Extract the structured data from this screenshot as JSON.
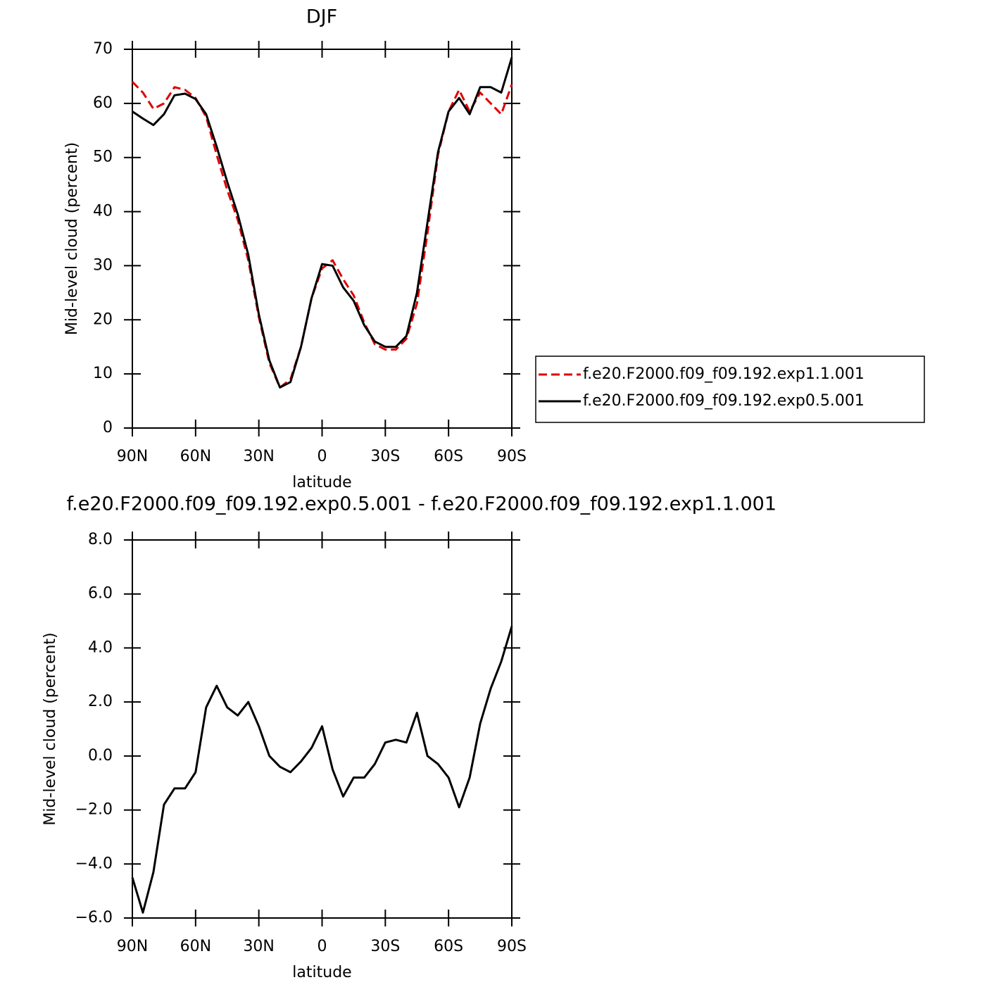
{
  "chart_data": [
    {
      "type": "line",
      "title": "DJF",
      "xlabel": "latitude",
      "ylabel": "Mid-level cloud (percent)",
      "x": [
        90,
        85,
        80,
        75,
        70,
        65,
        60,
        55,
        50,
        45,
        40,
        35,
        30,
        25,
        20,
        15,
        10,
        5,
        0,
        -5,
        -10,
        -15,
        -20,
        -25,
        -30,
        -35,
        -40,
        -45,
        -50,
        -55,
        -60,
        -65,
        -70,
        -75,
        -80,
        -85,
        -90
      ],
      "xlim": [
        90,
        -90
      ],
      "xticks": [
        {
          "value": 90,
          "label": "90N"
        },
        {
          "value": 60,
          "label": "60N"
        },
        {
          "value": 30,
          "label": "30N"
        },
        0,
        {
          "value": -30,
          "label": "30S"
        },
        {
          "value": -60,
          "label": "60S"
        },
        {
          "value": -90,
          "label": "90S"
        }
      ],
      "ylim": [
        0,
        70
      ],
      "yticks": [
        0,
        10,
        20,
        30,
        40,
        50,
        60,
        70
      ],
      "legend": "right",
      "series": [
        {
          "name": "f.e20.F2000.f09_f09.192.exp1.1.001",
          "color": "#e00000",
          "style": "dashed",
          "values": [
            64,
            62,
            59,
            60,
            63,
            62.5,
            61,
            57.5,
            50.5,
            44,
            38.5,
            31,
            20.5,
            12,
            7.5,
            9,
            15,
            24,
            29.5,
            31,
            27.5,
            24.5,
            19.5,
            15.5,
            14.5,
            14.5,
            16.5,
            23,
            36,
            50.5,
            58.5,
            62.5,
            58.5,
            62,
            60,
            58,
            63.5
          ]
        },
        {
          "name": "f.e20.F2000.f09_f09.192.exp0.5.001",
          "color": "#000000",
          "style": "solid",
          "values": [
            58.5,
            57.2,
            56,
            58,
            61.5,
            61.8,
            60.8,
            58,
            52,
            45.5,
            39.5,
            32,
            21,
            12.5,
            7.5,
            8.5,
            15,
            24,
            30.3,
            30,
            26,
            23.5,
            19,
            16,
            15,
            15,
            17,
            25,
            38,
            51,
            58.5,
            61,
            58,
            63,
            63,
            62,
            68.5
          ]
        }
      ]
    },
    {
      "type": "line",
      "title": "f.e20.F2000.f09_f09.192.exp0.5.001 - f.e20.F2000.f09_f09.192.exp1.1.001",
      "xlabel": "latitude",
      "ylabel": "Mid-level cloud (percent)",
      "x": [
        90,
        85,
        80,
        75,
        70,
        65,
        60,
        55,
        50,
        45,
        40,
        35,
        30,
        25,
        20,
        15,
        10,
        5,
        0,
        -5,
        -10,
        -15,
        -20,
        -25,
        -30,
        -35,
        -40,
        -45,
        -50,
        -55,
        -60,
        -65,
        -70,
        -75,
        -80,
        -85,
        -90
      ],
      "xlim": [
        90,
        -90
      ],
      "xticks": [
        {
          "value": 90,
          "label": "90N"
        },
        {
          "value": 60,
          "label": "60N"
        },
        {
          "value": 30,
          "label": "30N"
        },
        0,
        {
          "value": -30,
          "label": "30S"
        },
        {
          "value": -60,
          "label": "60S"
        },
        {
          "value": -90,
          "label": "90S"
        }
      ],
      "ylim": [
        -6,
        8
      ],
      "yticks": [
        {
          "value": -6,
          "label": "−6.0"
        },
        {
          "value": -4,
          "label": "−4.0"
        },
        {
          "value": -2,
          "label": "−2.0"
        },
        {
          "value": 0,
          "label": "0.0"
        },
        {
          "value": 2,
          "label": "2.0"
        },
        {
          "value": 4,
          "label": "4.0"
        },
        {
          "value": 6,
          "label": "6.0"
        },
        {
          "value": 8,
          "label": "8.0"
        }
      ],
      "color": "#000000",
      "values": [
        -4.5,
        -5.8,
        -4.3,
        -1.8,
        -1.2,
        -1.2,
        -0.6,
        1.8,
        2.6,
        1.8,
        1.5,
        2.0,
        1.1,
        0,
        -0.4,
        -0.6,
        -0.2,
        0.3,
        1.1,
        -0.5,
        -1.5,
        -0.8,
        -0.8,
        -0.3,
        0.5,
        0.6,
        0.5,
        1.6,
        0,
        -0.3,
        -0.8,
        -1.9,
        -0.8,
        1.2,
        2.5,
        3.5,
        4.8
      ]
    }
  ]
}
